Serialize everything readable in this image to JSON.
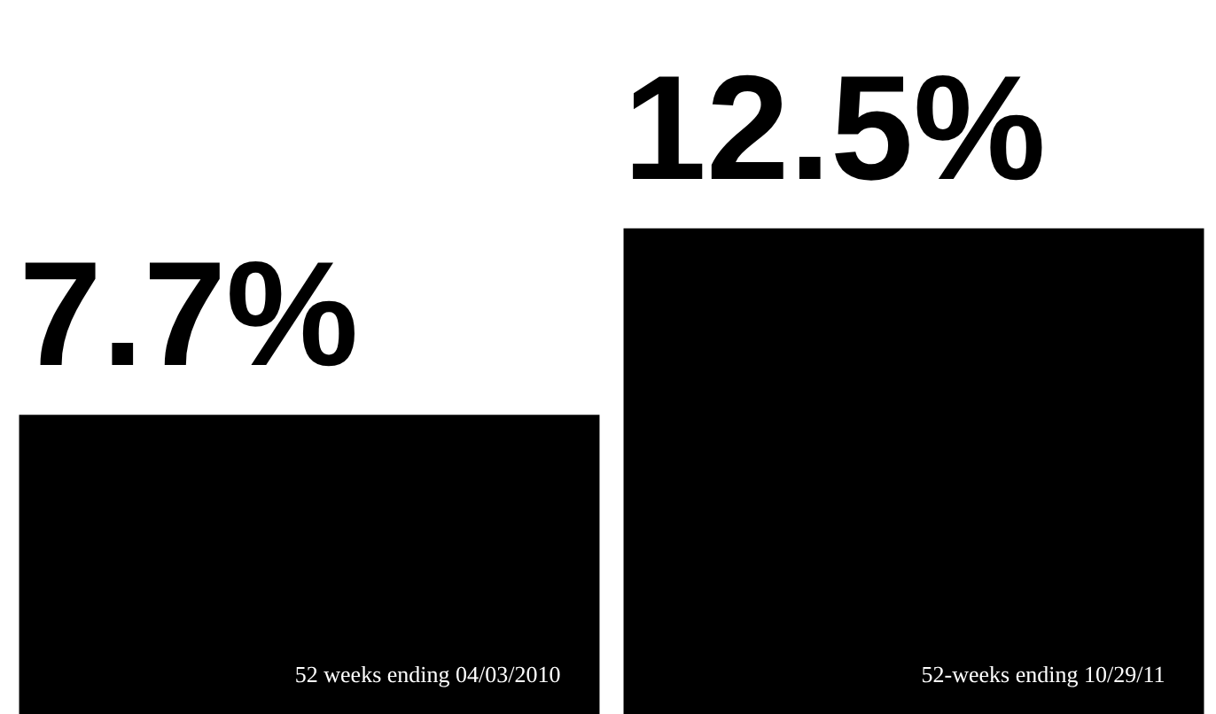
{
  "chart_data": {
    "type": "bar",
    "categories": [
      "52 weeks ending 04/03/2010",
      "52-weeks ending 10/29/11"
    ],
    "values": [
      7.7,
      12.5
    ],
    "value_labels": [
      "7.7%",
      "12.5%"
    ],
    "color": "#000000",
    "legend": false
  }
}
